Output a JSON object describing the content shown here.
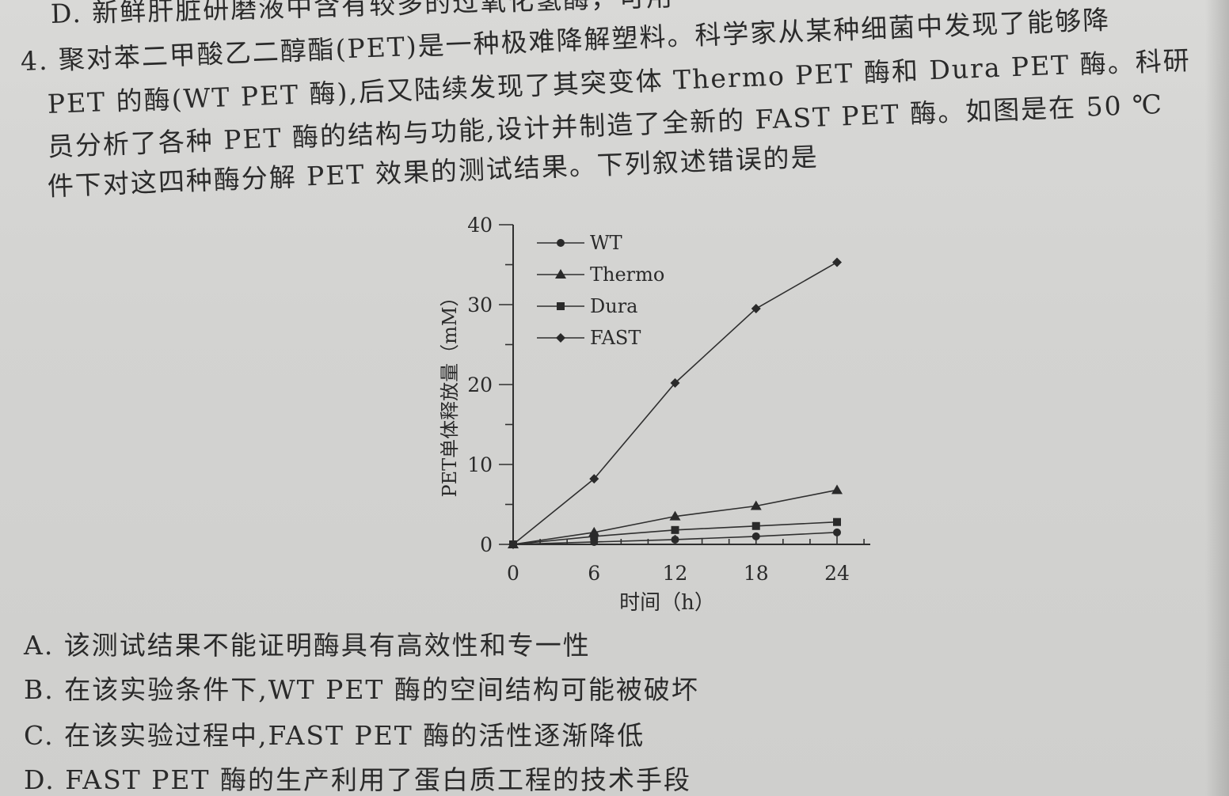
{
  "question": {
    "prev_option_d": "D. 新鲜肝脏研磨液中含有较多的过氧化氢酶，可用",
    "lines": [
      "4. 聚对苯二甲酸乙二醇酯(PET)是一种极难降解塑料。科学家从某种细菌中发现了能够降",
      "PET 的酶(WT PET 酶),后又陆续发现了其突变体 Thermo PET 酶和 Dura PET 酶。科研",
      "员分析了各种 PET 酶的结构与功能,设计并制造了全新的 FAST PET 酶。如图是在 50 ℃",
      "件下对这四种酶分解 PET 效果的测试结果。下列叙述错误的是"
    ]
  },
  "options": {
    "a": "A. 该测试结果不能证明酶具有高效性和专一性",
    "b": "B. 在该实验条件下,WT PET 酶的空间结构可能被破坏",
    "c": "C. 在该实验过程中,FAST PET 酶的活性逐渐降低",
    "d": "D. FAST PET 酶的生产利用了蛋白质工程的技术手段"
  },
  "chart_data": {
    "type": "line",
    "x": [
      0,
      6,
      12,
      18,
      24
    ],
    "xlabel": "时间（h）",
    "ylabel": "PET单体释放量（mM）",
    "xlim": [
      0,
      24
    ],
    "ylim": [
      0,
      40
    ],
    "xticks": [
      "0",
      "6",
      "12",
      "18",
      "24"
    ],
    "yticks": [
      "0",
      "10",
      "20",
      "30",
      "40"
    ],
    "legend_position": "top-left",
    "series": [
      {
        "name": "WT",
        "marker": "circle",
        "values": [
          0,
          0.3,
          0.6,
          1.0,
          1.5
        ]
      },
      {
        "name": "Thermo",
        "marker": "triangle",
        "values": [
          0,
          1.5,
          3.5,
          4.8,
          6.8
        ]
      },
      {
        "name": "Dura",
        "marker": "square",
        "values": [
          0,
          1.0,
          1.8,
          2.3,
          2.8
        ]
      },
      {
        "name": "FAST",
        "marker": "diamond",
        "values": [
          0,
          8.2,
          20.2,
          29.5,
          35.3
        ]
      }
    ]
  }
}
